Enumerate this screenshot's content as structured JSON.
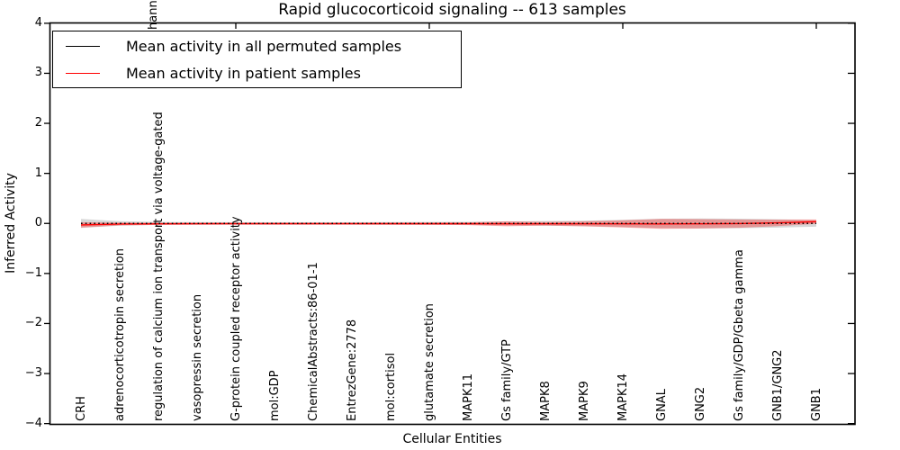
{
  "figure": {
    "title": "Rapid glucocorticoid signaling -- 613 samples",
    "xlabel": "Cellular Entities",
    "ylabel": "Inferred Activity"
  },
  "legend": {
    "items": [
      {
        "label": "Mean activity in all permuted samples",
        "color": "#000000"
      },
      {
        "label": "Mean activity in patient samples",
        "color": "#ff0000"
      }
    ]
  },
  "clipped_label_fragment": "hann",
  "chart_data": {
    "type": "line",
    "title": "Rapid glucocorticoid signaling -- 613 samples",
    "xlabel": "Cellular Entities",
    "ylabel": "Inferred Activity",
    "ylim": [
      -4,
      4
    ],
    "ytick_values": [
      4,
      3,
      2,
      1,
      0,
      -1,
      -2,
      -3,
      -4
    ],
    "ytick_labels": [
      "4",
      "3",
      "2",
      "1",
      "0",
      "−1",
      "−2",
      "−3",
      "−4"
    ],
    "grid": false,
    "legend_position": "upper left",
    "categories": [
      "CRH",
      "adrenocorticotropin secretion",
      "regulation of calcium ion transport via voltage-gated",
      "vasopressin secretion",
      "G-protein coupled receptor activity",
      "mol:GDP",
      "ChemicalAbstracts:86-01-1",
      "EntrezGene:2778",
      "mol:cortisol",
      "glutamate secretion",
      "MAPK11",
      "Gs family/GTP",
      "MAPK8",
      "MAPK9",
      "MAPK14",
      "GNAL",
      "GNG2",
      "Gs family/GDP/Gbeta gamma",
      "GNB1/GNG2",
      "GNB1"
    ],
    "series": [
      {
        "name": "Mean activity in all permuted samples",
        "color": "#000000",
        "style": "dotted",
        "values": [
          0,
          0,
          0,
          0,
          0,
          0,
          0,
          0,
          0,
          0,
          0,
          0,
          0,
          0,
          0,
          0,
          0,
          0,
          0,
          0
        ],
        "band_halfwidth": [
          0.09,
          0.045,
          0.029,
          0.027,
          0.025,
          0.025,
          0.025,
          0.025,
          0.027,
          0.029,
          0.032,
          0.04,
          0.047,
          0.054,
          0.072,
          0.094,
          0.099,
          0.094,
          0.083,
          0.065
        ],
        "band_color": "rgba(110,110,110,0.28)"
      },
      {
        "name": "Mean activity in patient samples",
        "color": "#ff0000",
        "style": "solid",
        "values": [
          -0.03,
          -0.012,
          -0.008,
          -0.006,
          -0.005,
          -0.005,
          -0.005,
          -0.005,
          -0.005,
          -0.006,
          -0.006,
          -0.007,
          -0.007,
          -0.008,
          -0.008,
          -0.01,
          -0.008,
          -0.004,
          0.012,
          0.035
        ],
        "band_halfwidth": [
          0.054,
          0.027,
          0.022,
          0.02,
          0.02,
          0.02,
          0.02,
          0.02,
          0.022,
          0.023,
          0.027,
          0.05,
          0.036,
          0.05,
          0.072,
          0.099,
          0.094,
          0.083,
          0.065,
          0.043
        ],
        "band_color": "rgba(255,0,0,0.30)"
      }
    ]
  }
}
